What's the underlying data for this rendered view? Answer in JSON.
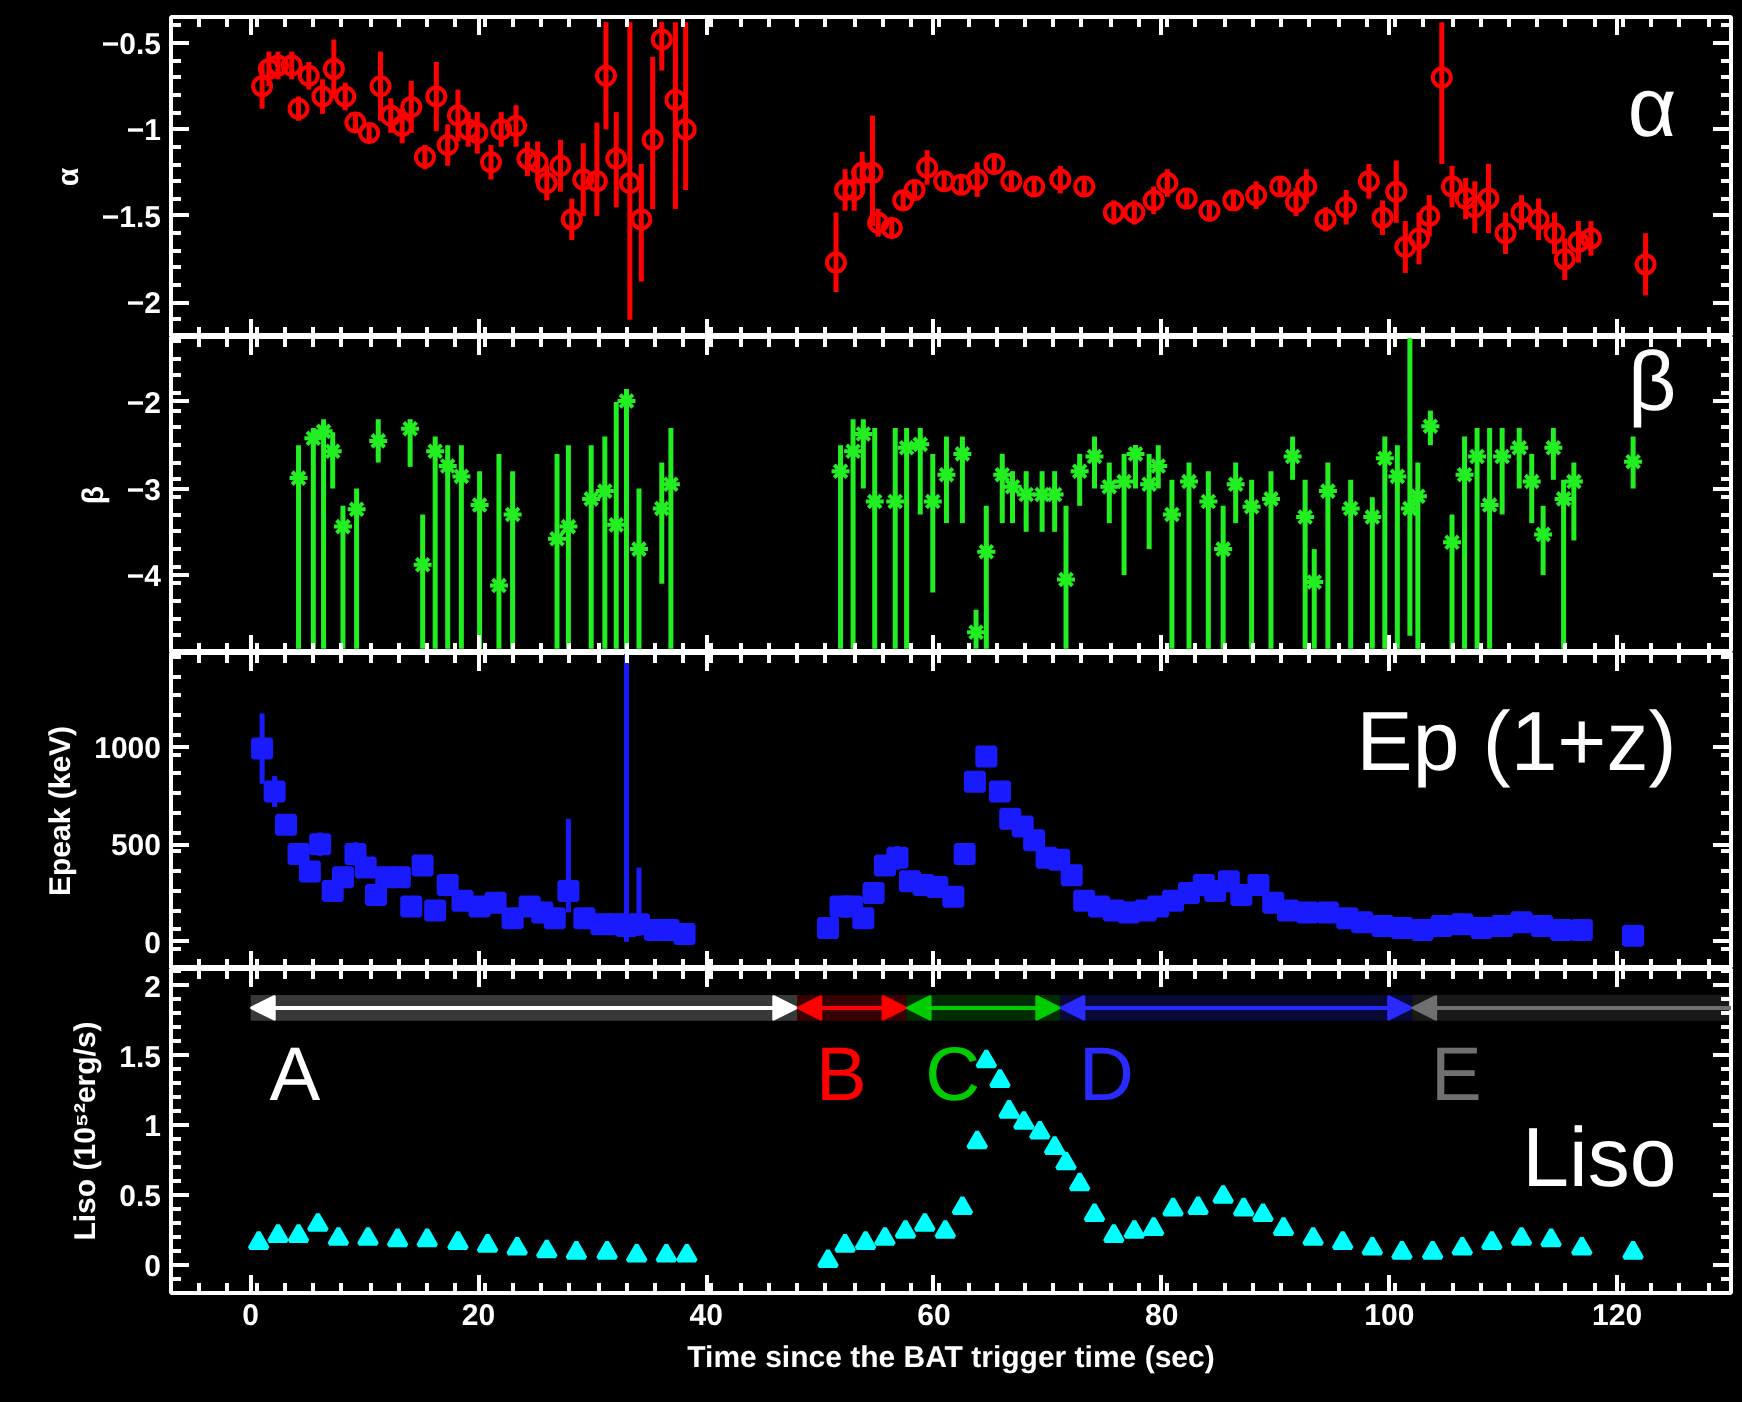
{
  "chart_data": [
    {
      "type": "scatter",
      "ylabel": "α",
      "annotations": [
        "α"
      ],
      "marker": "circle",
      "color": "#ff0000",
      "xlim": [
        -7,
        130
      ],
      "xticks": [
        0,
        20,
        40,
        60,
        80,
        100,
        120
      ],
      "ylim": [
        -2.2,
        -0.35
      ],
      "yticks": [
        -2,
        -1.5,
        -1,
        -0.5
      ],
      "tick_labels": "y",
      "x": [
        1.0,
        1.6,
        2.4,
        3.6,
        4.2,
        5.1,
        6.3,
        7.3,
        8.3,
        9.2,
        10.4,
        11.4,
        12.3,
        13.3,
        14.1,
        15.3,
        16.3,
        17.3,
        18.2,
        19.1,
        19.9,
        21.1,
        22.0,
        23.3,
        24.3,
        25.2,
        26.0,
        27.2,
        28.2,
        29.2,
        30.4,
        31.2,
        32.1,
        33.3,
        34.3,
        35.3,
        36.1,
        37.3,
        38.2,
        51.4,
        52.2,
        53.0,
        53.7,
        54.6,
        55.1,
        56.3,
        57.3,
        58.3,
        59.4,
        60.9,
        62.4,
        63.8,
        65.3,
        66.8,
        68.8,
        71.1,
        73.2,
        75.8,
        77.6,
        79.3,
        80.5,
        82.2,
        84.2,
        86.3,
        88.3,
        90.4,
        91.8,
        92.7,
        94.4,
        96.2,
        98.2,
        99.4,
        100.6,
        101.4,
        102.6,
        103.5,
        104.6,
        105.5,
        106.7,
        107.5,
        108.7,
        110.2,
        111.6,
        113.1,
        114.5,
        115.4,
        116.6,
        117.7,
        122.5
      ],
      "values": [
        -0.75,
        -0.65,
        -0.63,
        -0.63,
        -0.88,
        -0.69,
        -0.81,
        -0.65,
        -0.81,
        -0.96,
        -1.02,
        -0.75,
        -0.92,
        -0.98,
        -0.87,
        -1.16,
        -0.81,
        -1.09,
        -0.92,
        -1.0,
        -1.02,
        -1.19,
        -1.0,
        -0.98,
        -1.17,
        -1.19,
        -1.31,
        -1.21,
        -1.52,
        -1.29,
        -1.3,
        -0.69,
        -1.17,
        -1.31,
        -1.52,
        -1.06,
        -0.48,
        -0.83,
        -1.0,
        -1.77,
        -1.35,
        -1.35,
        -1.25,
        -1.25,
        -1.54,
        -1.57,
        -1.41,
        -1.35,
        -1.22,
        -1.3,
        -1.32,
        -1.29,
        -1.2,
        -1.3,
        -1.33,
        -1.29,
        -1.33,
        -1.48,
        -1.48,
        -1.41,
        -1.31,
        -1.4,
        -1.47,
        -1.41,
        -1.38,
        -1.33,
        -1.42,
        -1.33,
        -1.52,
        -1.45,
        -1.3,
        -1.51,
        -1.36,
        -1.68,
        -1.63,
        -1.5,
        -0.7,
        -1.33,
        -1.4,
        -1.45,
        -1.4,
        -1.6,
        -1.48,
        -1.52,
        -1.6,
        -1.75,
        -1.65,
        -1.63,
        -1.78
      ],
      "errors": [
        0.13,
        0.1,
        0.08,
        0.08,
        0.07,
        0.08,
        0.1,
        0.17,
        0.08,
        0.05,
        0.05,
        0.2,
        0.1,
        0.1,
        0.15,
        0.07,
        0.2,
        0.12,
        0.15,
        0.1,
        0.12,
        0.1,
        0.1,
        0.12,
        0.1,
        0.12,
        0.1,
        0.15,
        0.12,
        [
          -1.5,
          -1.08
        ],
        [
          -1.5,
          -0.96
        ],
        [
          -1.0,
          -0.38
        ],
        [
          -1.45,
          -0.9
        ],
        [
          -2.1,
          -0.38
        ],
        [
          -1.88,
          -1.2
        ],
        [
          -1.46,
          -0.58
        ],
        [
          -0.66,
          -0.38
        ],
        [
          -1.46,
          -0.38
        ],
        [
          -1.35,
          -0.38
        ],
        [
          -1.94,
          -1.48
        ],
        0.12,
        0.12,
        0.12,
        [
          -1.56,
          -0.92
        ],
        0.08,
        0.05,
        0.05,
        0.06,
        0.1,
        0.06,
        0.06,
        0.1,
        0.06,
        0.05,
        0.05,
        0.08,
        0.05,
        0.07,
        0.07,
        0.08,
        0.08,
        0.06,
        0.06,
        0.06,
        0.08,
        0.06,
        0.08,
        0.1,
        0.07,
        0.1,
        0.1,
        0.1,
        0.18,
        0.15,
        0.15,
        0.12,
        [
          -1.2,
          -0.38
        ],
        0.12,
        0.12,
        0.15,
        0.2,
        0.12,
        0.1,
        0.12,
        0.12,
        0.12,
        0.12,
        0.1,
        0.18
      ]
    },
    {
      "type": "scatter",
      "ylabel": "β",
      "annotations": [
        "β"
      ],
      "marker": "cross",
      "color": "#22ee22",
      "xlim": [
        -7,
        130
      ],
      "xticks": [
        0,
        20,
        40,
        60,
        80,
        100,
        120
      ],
      "ylim": [
        -4.9,
        -1.25
      ],
      "yticks": [
        -4,
        -3,
        -2
      ],
      "tick_labels": "y",
      "x": [
        4.2,
        5.5,
        6.4,
        7.2,
        8.1,
        9.3,
        11.2,
        14.0,
        15.1,
        16.2,
        17.3,
        18.5,
        20.1,
        21.8,
        23.0,
        26.9,
        27.9,
        29.9,
        31.1,
        32.1,
        33.0,
        34.1,
        36.1,
        36.9,
        51.8,
        52.9,
        53.8,
        54.8,
        56.6,
        57.6,
        58.8,
        59.9,
        61.1,
        62.5,
        63.7,
        64.6,
        66.0,
        66.9,
        68.1,
        69.5,
        70.6,
        71.6,
        72.8,
        74.1,
        75.4,
        76.7,
        77.7,
        78.9,
        79.7,
        80.9,
        82.4,
        84.1,
        85.4,
        86.5,
        87.9,
        89.6,
        91.5,
        92.6,
        93.4,
        94.6,
        96.6,
        98.5,
        99.6,
        100.7,
        101.8,
        102.5,
        103.6,
        105.5,
        106.6,
        107.7,
        108.8,
        109.9,
        111.4,
        112.5,
        113.5,
        114.4,
        115.3,
        116.2,
        121.4
      ],
      "values": [
        -2.88,
        -2.42,
        -2.34,
        -2.57,
        -3.44,
        -3.24,
        -2.45,
        -2.31,
        -3.88,
        -2.57,
        -2.74,
        -2.86,
        -3.19,
        -4.12,
        -3.3,
        -3.58,
        -3.44,
        -3.12,
        -3.03,
        -3.42,
        -1.99,
        -3.7,
        -3.23,
        -2.95,
        -2.8,
        -2.57,
        -2.37,
        -3.15,
        -3.15,
        -2.53,
        -2.49,
        -3.15,
        -2.84,
        -2.6,
        -4.66,
        -3.73,
        -2.84,
        -2.98,
        -3.07,
        -3.07,
        -3.07,
        -4.05,
        -2.8,
        -2.63,
        -2.98,
        -2.92,
        -2.6,
        -2.95,
        -2.74,
        -3.3,
        -2.92,
        -3.15,
        -3.7,
        -2.95,
        -3.21,
        -3.12,
        -2.63,
        -3.33,
        -4.08,
        -3.03,
        -3.23,
        -3.33,
        -2.65,
        -2.86,
        -3.23,
        -3.09,
        -2.28,
        -3.62,
        -2.84,
        -2.63,
        -3.19,
        -2.63,
        -2.53,
        -2.92,
        -3.53,
        -2.53,
        -3.12,
        -2.92,
        -2.69
      ],
      "errors": [
        [
          -4.85,
          -2.5
        ],
        [
          -4.85,
          -2.3
        ],
        [
          -4.85,
          -2.2
        ],
        [
          -3.0,
          -2.35
        ],
        [
          -4.85,
          -3.2
        ],
        [
          -4.85,
          -3.0
        ],
        [
          -2.7,
          -2.2
        ],
        [
          -2.75,
          -2.2
        ],
        [
          -4.85,
          -3.3
        ],
        [
          -4.85,
          -2.4
        ],
        [
          -4.85,
          -2.5
        ],
        [
          -4.85,
          -2.5
        ],
        [
          -4.85,
          -2.8
        ],
        [
          -4.85,
          -2.6
        ],
        [
          -4.85,
          -2.8
        ],
        [
          -4.85,
          -2.6
        ],
        [
          -4.85,
          -2.5
        ],
        [
          -4.85,
          -2.5
        ],
        [
          -4.85,
          -2.4
        ],
        [
          -4.85,
          -2.0
        ],
        [
          -4.85,
          -1.85
        ],
        [
          -4.85,
          -3.0
        ],
        [
          -4.1,
          -2.7
        ],
        [
          -4.85,
          -2.3
        ],
        [
          -4.85,
          -2.5
        ],
        [
          -4.85,
          -2.2
        ],
        [
          -3.0,
          -2.2
        ],
        [
          -4.85,
          -2.3
        ],
        [
          -4.85,
          -2.3
        ],
        [
          -4.85,
          -2.3
        ],
        [
          -3.3,
          -2.3
        ],
        [
          -4.2,
          -2.6
        ],
        [
          -3.4,
          -2.4
        ],
        [
          -3.4,
          -2.4
        ],
        [
          -4.85,
          -4.4
        ],
        [
          -4.85,
          -3.2
        ],
        [
          -3.4,
          -2.6
        ],
        [
          -3.4,
          -2.8
        ],
        [
          -3.5,
          -2.8
        ],
        [
          -3.5,
          -2.8
        ],
        [
          -3.5,
          -2.8
        ],
        [
          -4.85,
          -3.2
        ],
        [
          -3.2,
          -2.6
        ],
        [
          -3.0,
          -2.4
        ],
        [
          -3.4,
          -2.7
        ],
        [
          -4.0,
          -2.6
        ],
        [
          -3.0,
          -2.5
        ],
        [
          -3.7,
          -2.6
        ],
        [
          -3.0,
          -2.5
        ],
        [
          -4.85,
          -2.9
        ],
        [
          -4.85,
          -2.7
        ],
        [
          -4.85,
          -2.8
        ],
        [
          -4.85,
          -3.2
        ],
        [
          -3.4,
          -2.7
        ],
        [
          -4.85,
          -2.9
        ],
        [
          -4.85,
          -2.8
        ],
        [
          -2.9,
          -2.4
        ],
        [
          -4.85,
          -2.9
        ],
        [
          -4.85,
          -3.7
        ],
        [
          -4.85,
          -2.7
        ],
        [
          -4.85,
          -2.9
        ],
        [
          -4.85,
          -3.1
        ],
        [
          -4.85,
          -2.4
        ],
        [
          -4.85,
          -2.5
        ],
        [
          -4.7,
          -1.25
        ],
        [
          -4.85,
          -2.7
        ],
        [
          -2.5,
          -2.1
        ],
        [
          -4.85,
          -3.3
        ],
        [
          -4.85,
          -2.4
        ],
        [
          -4.85,
          -2.3
        ],
        [
          -4.85,
          -2.3
        ],
        [
          -3.3,
          -2.3
        ],
        [
          -3.0,
          -2.3
        ],
        [
          -3.4,
          -2.6
        ],
        [
          -4.0,
          -3.2
        ],
        [
          -2.9,
          -2.3
        ],
        [
          -4.85,
          -2.9
        ],
        [
          -3.6,
          -2.7
        ],
        [
          -3.0,
          -2.4
        ]
      ]
    },
    {
      "type": "scatter",
      "ylabel": "Epeak (keV)",
      "annotations": [
        "Ep (1+z)"
      ],
      "marker": "square",
      "color": "#1a1aff",
      "xlim": [
        -7,
        130
      ],
      "xticks": [
        0,
        20,
        40,
        60,
        80,
        100,
        120
      ],
      "ylim": [
        -140,
        1480
      ],
      "yticks": [
        0,
        500,
        1000
      ],
      "tick_labels": "y",
      "x": [
        1.0,
        2.1,
        3.1,
        4.2,
        5.2,
        6.1,
        7.2,
        8.1,
        9.2,
        10.1,
        11.0,
        11.9,
        13.1,
        14.1,
        15.1,
        16.2,
        17.3,
        18.6,
        20.1,
        21.5,
        23.0,
        24.5,
        25.6,
        26.7,
        27.9,
        29.3,
        30.8,
        32.1,
        33.0,
        34.1,
        35.5,
        36.7,
        38.1,
        50.7,
        51.8,
        52.8,
        53.8,
        54.7,
        55.7,
        56.8,
        57.9,
        59.1,
        60.3,
        61.7,
        62.7,
        63.6,
        64.6,
        65.8,
        66.7,
        67.8,
        68.8,
        69.9,
        71.0,
        72.1,
        73.2,
        74.5,
        75.8,
        77.1,
        78.6,
        79.7,
        81.0,
        82.4,
        83.7,
        84.7,
        85.9,
        87.0,
        88.5,
        89.8,
        91.1,
        92.8,
        94.6,
        96.3,
        97.6,
        99.4,
        101.1,
        102.9,
        104.6,
        106.4,
        108.1,
        109.9,
        111.6,
        113.4,
        115.1,
        116.9,
        121.4
      ],
      "values": [
        990,
        770,
        600,
        450,
        360,
        500,
        260,
        330,
        450,
        380,
        240,
        330,
        330,
        180,
        390,
        160,
        290,
        210,
        180,
        200,
        120,
        180,
        150,
        120,
        260,
        120,
        90,
        90,
        80,
        90,
        60,
        60,
        40,
        70,
        180,
        180,
        120,
        250,
        390,
        430,
        310,
        290,
        280,
        230,
        450,
        820,
        950,
        770,
        630,
        590,
        520,
        430,
        420,
        340,
        210,
        180,
        160,
        150,
        160,
        180,
        210,
        250,
        290,
        260,
        310,
        240,
        290,
        200,
        160,
        150,
        150,
        120,
        100,
        80,
        70,
        60,
        80,
        90,
        70,
        80,
        100,
        80,
        60,
        60,
        30
      ],
      "errors": [
        180,
        80,
        40,
        50,
        50,
        60,
        40,
        40,
        60,
        40,
        40,
        40,
        40,
        30,
        50,
        30,
        40,
        30,
        30,
        30,
        30,
        30,
        30,
        30,
        [
          150,
          630
        ],
        30,
        30,
        30,
        [
          0,
          1480
        ],
        [
          30,
          380
        ],
        20,
        20,
        20,
        30,
        40,
        30,
        30,
        40,
        50,
        60,
        50,
        40,
        40,
        40,
        40,
        40,
        30,
        30,
        30,
        30,
        30,
        30,
        30,
        30,
        20,
        20,
        20,
        20,
        20,
        20,
        20,
        20,
        20,
        20,
        20,
        20,
        20,
        20,
        20,
        20,
        20,
        20,
        20,
        20,
        20,
        20,
        20,
        20,
        20,
        20,
        20,
        20,
        20,
        20,
        20
      ]
    },
    {
      "type": "scatter",
      "ylabel": "Liso (10⁵²erg/s)",
      "xlabel": "Time since the BAT trigger time (sec)",
      "annotations": [
        "Liso"
      ],
      "marker": "triangle",
      "color": "#00ffff",
      "xlim": [
        -7,
        130
      ],
      "xticks": [
        0,
        20,
        40,
        60,
        80,
        100,
        120
      ],
      "ylim": [
        -0.2,
        2.12
      ],
      "yticks": [
        0,
        0.5,
        1,
        1.5,
        2
      ],
      "bands": [
        {
          "axis": "x",
          "from": 0,
          "to": 48,
          "label": "A",
          "color": "#ffffff"
        },
        {
          "axis": "x",
          "from": 48,
          "to": 57.6,
          "label": "B",
          "color": "#ff0000"
        },
        {
          "axis": "x",
          "from": 57.6,
          "to": 71.1,
          "label": "C",
          "color": "#00cc00"
        },
        {
          "axis": "x",
          "from": 71.1,
          "to": 102,
          "label": "D",
          "color": "#2a2aff"
        },
        {
          "axis": "x",
          "from": 102,
          "to": 130,
          "label": "E",
          "color": "#707070"
        }
      ],
      "x": [
        0.7,
        2.4,
        4.2,
        5.9,
        7.7,
        10.3,
        12.9,
        15.5,
        18.2,
        20.8,
        23.4,
        26.0,
        28.6,
        31.3,
        33.9,
        36.5,
        38.3,
        50.7,
        52.2,
        54.0,
        55.7,
        57.5,
        59.2,
        61.0,
        62.5,
        63.8,
        64.6,
        65.8,
        66.6,
        67.9,
        69.3,
        70.6,
        71.6,
        72.8,
        74.1,
        75.8,
        77.6,
        79.3,
        81.0,
        83.2,
        85.4,
        87.2,
        88.9,
        90.7,
        93.3,
        95.9,
        98.5,
        101.1,
        103.8,
        106.4,
        109.0,
        111.6,
        114.2,
        116.9,
        121.4
      ],
      "values": [
        0.16,
        0.21,
        0.21,
        0.29,
        0.19,
        0.19,
        0.18,
        0.18,
        0.16,
        0.14,
        0.12,
        0.1,
        0.09,
        0.09,
        0.07,
        0.07,
        0.07,
        0.03,
        0.14,
        0.16,
        0.19,
        0.24,
        0.29,
        0.24,
        0.41,
        0.88,
        1.46,
        1.32,
        1.1,
        1.02,
        0.95,
        0.84,
        0.73,
        0.58,
        0.36,
        0.21,
        0.24,
        0.26,
        0.4,
        0.41,
        0.49,
        0.4,
        0.36,
        0.26,
        0.19,
        0.16,
        0.12,
        0.09,
        0.09,
        0.12,
        0.16,
        0.19,
        0.18,
        0.12,
        0.09
      ]
    }
  ]
}
